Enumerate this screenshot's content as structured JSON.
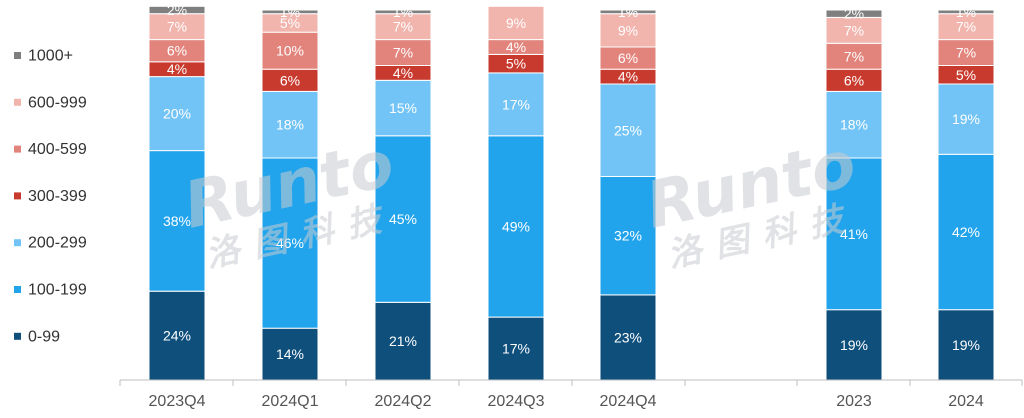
{
  "chart_data": {
    "type": "bar",
    "stacked": true,
    "percent": true,
    "categories": [
      "2023Q4",
      "2024Q1",
      "2024Q2",
      "2024Q3",
      "2024Q4",
      "2023",
      "2024"
    ],
    "series": [
      {
        "name": "0-99",
        "color": "#0e4f7c",
        "label_color": "#ffffff",
        "values": [
          24,
          14,
          21,
          17,
          23,
          19,
          19
        ]
      },
      {
        "name": "100-199",
        "color": "#22a4ec",
        "label_color": "#ffffff",
        "values": [
          38,
          46,
          45,
          49,
          32,
          41,
          42
        ]
      },
      {
        "name": "200-299",
        "color": "#73c4f6",
        "label_color": "#ffffff",
        "values": [
          20,
          18,
          15,
          17,
          25,
          18,
          19
        ]
      },
      {
        "name": "300-399",
        "color": "#c93a2e",
        "label_color": "#ffffff",
        "values": [
          4,
          6,
          4,
          5,
          4,
          6,
          5
        ]
      },
      {
        "name": "400-599",
        "color": "#e2847c",
        "label_color": "#ffffff",
        "values": [
          6,
          10,
          7,
          4,
          6,
          7,
          7
        ]
      },
      {
        "name": "600-999",
        "color": "#f2b5ae",
        "label_color": "#ffffff",
        "values": [
          7,
          5,
          7,
          9,
          9,
          7,
          7
        ]
      },
      {
        "name": "1000+",
        "color": "#7f7f7f",
        "label_color": "#ffffff",
        "values": [
          2,
          1,
          1,
          0,
          1,
          2,
          1
        ]
      }
    ],
    "ylim": [
      0,
      100
    ],
    "legend_position": "left",
    "grid": false,
    "watermark": {
      "latin": "Runto",
      "chinese": "洛图科技"
    }
  }
}
